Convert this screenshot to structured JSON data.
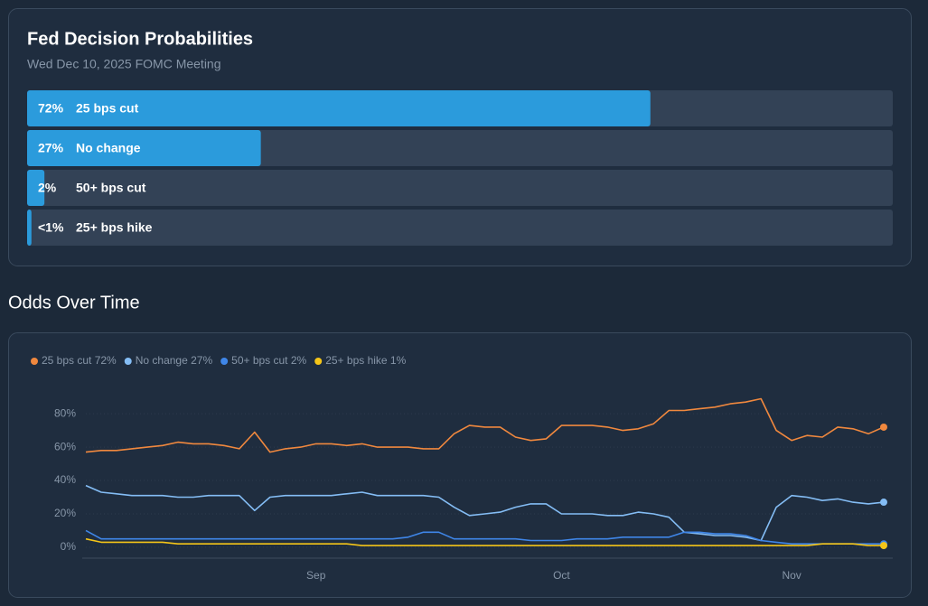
{
  "chart_data": [
    {
      "type": "hbar",
      "title": "Fed Decision Probabilities",
      "subtitle": "Wed Dec 10, 2025 FOMC Meeting",
      "categories": [
        "25 bps cut",
        "No change",
        "50+ bps cut",
        "25+ bps hike"
      ],
      "values": [
        72,
        27,
        2,
        0.5
      ],
      "value_labels": [
        "72%",
        "27%",
        "2%",
        "<1%"
      ],
      "xlim": [
        0,
        100
      ],
      "color": "#2b9bdc"
    },
    {
      "type": "line",
      "title": "Odds Over Time",
      "categories": [
        null,
        null,
        null,
        null,
        null,
        null,
        null,
        null,
        null,
        null,
        null,
        null,
        null,
        null,
        null,
        "Sep",
        null,
        null,
        null,
        null,
        null,
        null,
        null,
        null,
        null,
        null,
        null,
        null,
        null,
        null,
        null,
        "Oct",
        null,
        null,
        null,
        null,
        null,
        null,
        null,
        null,
        null,
        null,
        null,
        null,
        null,
        null,
        "Nov",
        null,
        null,
        null,
        null,
        null,
        null
      ],
      "ylim": [
        -6,
        92
      ],
      "yticks": [
        {
          "value": 0,
          "label": "0%"
        },
        {
          "value": 20,
          "label": "20%"
        },
        {
          "value": 40,
          "label": "40%"
        },
        {
          "value": 60,
          "label": "60%"
        },
        {
          "value": 80,
          "label": "80%"
        }
      ],
      "grid": true,
      "legend": "top-left",
      "series": [
        {
          "name": "25 bps cut 72%",
          "color": "#f0883e",
          "values": [
            57,
            58,
            58,
            59,
            60,
            61,
            63,
            62,
            62,
            61,
            59,
            69,
            57,
            59,
            60,
            62,
            62,
            61,
            62,
            60,
            60,
            60,
            59,
            59,
            68,
            73,
            72,
            72,
            66,
            64,
            65,
            73,
            73,
            73,
            72,
            70,
            71,
            74,
            82,
            82,
            83,
            84,
            86,
            87,
            89,
            70,
            64,
            67,
            66,
            72,
            71,
            68,
            72
          ]
        },
        {
          "name": "No change 27%",
          "color": "#84bdf5",
          "values": [
            37,
            33,
            32,
            31,
            31,
            31,
            30,
            30,
            31,
            31,
            31,
            22,
            30,
            31,
            31,
            31,
            31,
            32,
            33,
            31,
            31,
            31,
            31,
            30,
            24,
            19,
            20,
            21,
            24,
            26,
            26,
            20,
            20,
            20,
            19,
            19,
            21,
            20,
            18,
            9,
            8,
            7,
            7,
            6,
            4,
            24,
            31,
            30,
            28,
            29,
            27,
            26,
            27
          ]
        },
        {
          "name": "50+ bps cut 2%",
          "color": "#3f86e8",
          "values": [
            10,
            5,
            5,
            5,
            5,
            5,
            5,
            5,
            5,
            5,
            5,
            5,
            5,
            5,
            5,
            5,
            5,
            5,
            5,
            5,
            5,
            6,
            9,
            9,
            5,
            5,
            5,
            5,
            5,
            4,
            4,
            4,
            5,
            5,
            5,
            6,
            6,
            6,
            6,
            9,
            9,
            8,
            8,
            7,
            4,
            3,
            2,
            2,
            2,
            2,
            2,
            2,
            2
          ]
        },
        {
          "name": "25+ bps hike 1%",
          "color": "#f5c518",
          "values": [
            5,
            3,
            3,
            3,
            3,
            3,
            2,
            2,
            2,
            2,
            2,
            2,
            2,
            2,
            2,
            2,
            2,
            2,
            1,
            1,
            1,
            1,
            1,
            1,
            1,
            1,
            1,
            1,
            1,
            1,
            1,
            1,
            1,
            1,
            1,
            1,
            1,
            1,
            1,
            1,
            1,
            1,
            1,
            1,
            1,
            1,
            1,
            1,
            2,
            2,
            2,
            1,
            1
          ]
        }
      ]
    }
  ]
}
